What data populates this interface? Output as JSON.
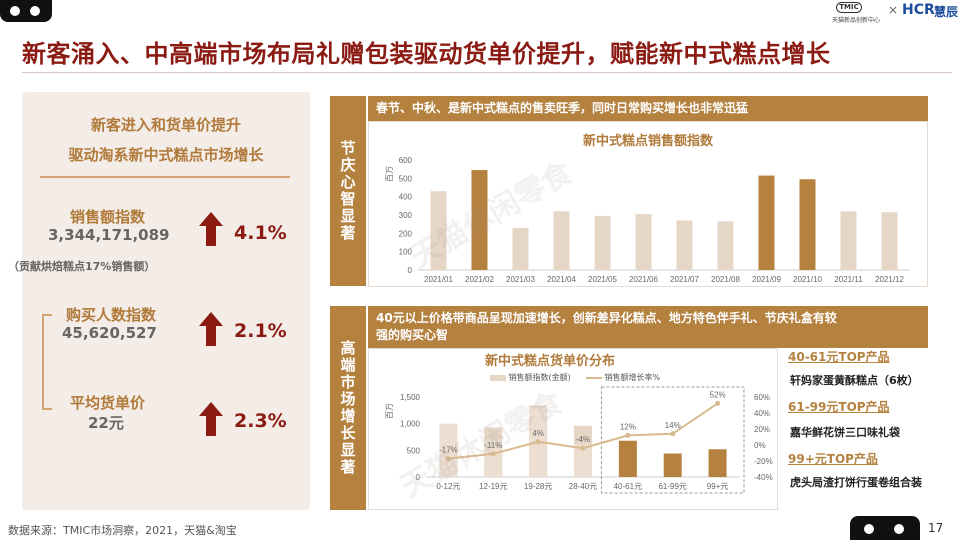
{
  "page_title": "新客涌入、中高端市场布局礼赠包装驱动货单价提升，赋能新中式糕点增长",
  "left": {
    "heading_1": "新客进入和货单价提升",
    "heading_2": "驱动淘系新中式糕点市场增长",
    "metrics": [
      {
        "label": "销售额指数",
        "value": "3,344,171,089",
        "pct": "4.1%"
      },
      {
        "label": "购买人数指数",
        "value": "45,620,527",
        "pct": "2.1%"
      },
      {
        "label": "平均货单价",
        "value": "22元",
        "pct": "2.3%"
      }
    ],
    "note": "（贡献烘焙糕点17%销售额）"
  },
  "top_panel": {
    "side_label": "节庆心智显著",
    "header": "春节、中秋、是新中式糕点的售卖旺季，同时日常购买增长也非常迅猛",
    "chart_title": "新中式糕点销售额指数",
    "y_unit": "百万"
  },
  "bottom_panel": {
    "side_label": "高端市场增长显著",
    "header_line1": "40元以上价格带商品呈现加速增长，创新差异化糕点、地方特色伴手礼、节庆礼盒有较",
    "header_line2": "强的购买心智",
    "chart_title": "新中式糕点货单价分布",
    "legend_bar": "销售额指数(金额)",
    "legend_line": "销售额增长率%",
    "y_unit": "百万",
    "top_products": [
      {
        "label": "40-61元TOP产品",
        "name": "轩妈家蛋黄酥糕点（6枚）"
      },
      {
        "label": "61-99元TOP产品",
        "name": "嘉华鲜花饼三口味礼袋"
      },
      {
        "label": "99+元TOP产品",
        "name": "虎头局渣打饼行蛋卷组合装"
      }
    ]
  },
  "chart_data": [
    {
      "type": "bar",
      "title": "新中式糕点销售额指数",
      "ylabel": "百万",
      "categories": [
        "2021/01",
        "2021/02",
        "2021/03",
        "2021/04",
        "2021/05",
        "2021/06",
        "2021/07",
        "2021/08",
        "2021/09",
        "2021/10",
        "2021/11",
        "2021/12"
      ],
      "values": [
        430,
        545,
        230,
        320,
        295,
        305,
        270,
        265,
        515,
        495,
        320,
        315
      ],
      "highlight": [
        false,
        true,
        false,
        false,
        false,
        false,
        false,
        false,
        true,
        true,
        false,
        false
      ],
      "ylim": [
        0,
        600
      ],
      "yticks": [
        0,
        100,
        200,
        300,
        400,
        500,
        600
      ]
    },
    {
      "type": "bar",
      "title": "新中式糕点货单价分布",
      "ylabel": "百万",
      "categories": [
        "0-12元",
        "12-19元",
        "19-28元",
        "28-40元",
        "40-61元",
        "61-99元",
        "99+元"
      ],
      "series": [
        {
          "name": "销售额指数(金额)",
          "type": "bar",
          "values": [
            1000,
            680,
            1300,
            610,
            680,
            440,
            520
          ],
          "bg_values": [
            780,
            930,
            1340,
            960,
            0,
            0,
            0
          ]
        },
        {
          "name": "销售额增长率%",
          "type": "line",
          "values": [
            -17,
            -11,
            4,
            -4,
            12,
            14,
            52
          ],
          "labels": [
            "-17%",
            "-11%",
            "4%",
            "-4%",
            "12%",
            "14%",
            "52%"
          ]
        }
      ],
      "ylim": [
        0,
        1500
      ],
      "yticks": [
        "0",
        "500",
        "1,000",
        "1,500"
      ],
      "y2lim": [
        -40,
        60
      ],
      "y2ticks": [
        "-40%",
        "-20%",
        "0%",
        "20%",
        "40%",
        "60%"
      ]
    }
  ],
  "footer": {
    "source": "数据来源：TMIC市场洞察，2021，天猫&淘宝",
    "page": "17"
  },
  "brand": {
    "tmic": "TMIC",
    "tmic_sub": "天猫新品创新中心",
    "x": "×",
    "hcr": "HCR",
    "hcr_cn": "慧辰"
  },
  "watermark": "天猫休闲零食",
  "colors": {
    "title": "#8a1a12",
    "gold": "#b5813f",
    "light_bar": "#e6d6c6",
    "bar": "#b5813f"
  }
}
